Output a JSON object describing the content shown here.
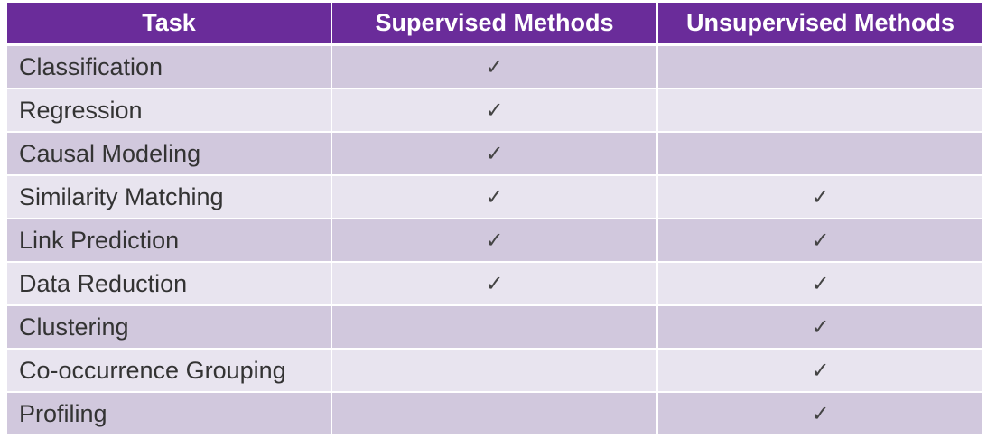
{
  "table": {
    "headers": [
      "Task",
      "Supervised Methods",
      "Unsupervised Methods"
    ],
    "check_glyph": "✓",
    "rows": [
      {
        "task": "Classification",
        "supervised": "✓",
        "unsupervised": ""
      },
      {
        "task": "Regression",
        "supervised": "✓",
        "unsupervised": ""
      },
      {
        "task": "Causal Modeling",
        "supervised": "✓",
        "unsupervised": ""
      },
      {
        "task": "Similarity Matching",
        "supervised": "✓",
        "unsupervised": "✓"
      },
      {
        "task": "Link Prediction",
        "supervised": "✓",
        "unsupervised": "✓"
      },
      {
        "task": "Data Reduction",
        "supervised": "✓",
        "unsupervised": "✓"
      },
      {
        "task": "Clustering",
        "supervised": "",
        "unsupervised": "✓"
      },
      {
        "task": "Co-occurrence Grouping",
        "supervised": "",
        "unsupervised": "✓"
      },
      {
        "task": "Profiling",
        "supervised": "",
        "unsupervised": "✓"
      }
    ],
    "colors": {
      "header_bg": "#6a2c9a",
      "row_odd_bg": "#d1c8dd",
      "row_even_bg": "#e8e4ef",
      "header_text": "#ffffff",
      "body_text": "#333333"
    }
  }
}
